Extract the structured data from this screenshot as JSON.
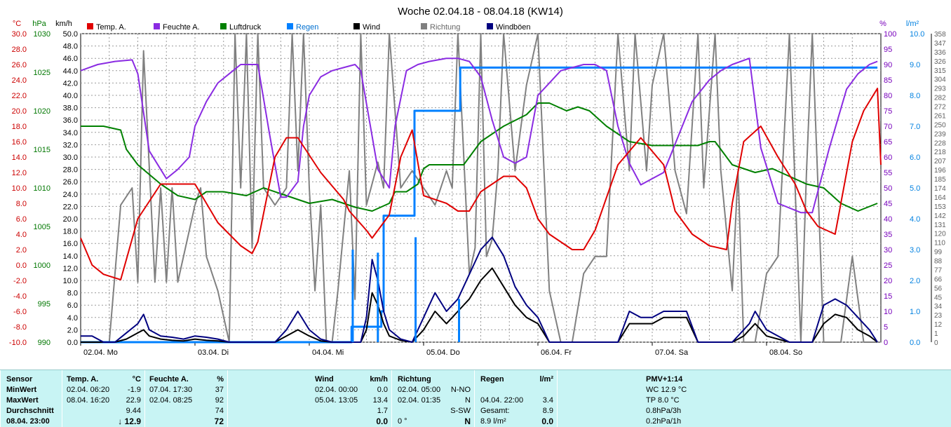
{
  "chart_data": {
    "type": "line",
    "title": "Woche 02.04.18 - 08.04.18 (KW14)",
    "x_labels": [
      "02.04. Mo",
      "03.04. Di",
      "04.04. Mi",
      "05.04. Do",
      "06.04. Fr",
      "07.04. Sa",
      "08.04. So"
    ],
    "axes": {
      "temp": {
        "unit": "°C",
        "ticks": [
          "30.0",
          "28.0",
          "26.0",
          "24.0",
          "22.0",
          "20.0",
          "18.0",
          "16.0",
          "14.0",
          "12.0",
          "10.0",
          "8.0",
          "6.0",
          "4.0",
          "2.0",
          "0.0",
          "-2.0",
          "-4.0",
          "-6.0",
          "-8.0",
          "-10.0"
        ],
        "range": [
          -10,
          30
        ],
        "color": "#cc0000"
      },
      "press": {
        "unit": "hPa",
        "ticks": [
          "1030",
          "1025",
          "1020",
          "1015",
          "1010",
          "1005",
          "1000",
          "995",
          "990"
        ],
        "range": [
          990,
          1030
        ],
        "color": "#007700"
      },
      "wind": {
        "unit": "km/h",
        "ticks": [
          "50.0",
          "48.0",
          "46.0",
          "44.0",
          "42.0",
          "40.0",
          "38.0",
          "36.0",
          "34.0",
          "32.0",
          "30.0",
          "28.0",
          "26.0",
          "24.0",
          "22.0",
          "20.0",
          "18.0",
          "16.0",
          "14.0",
          "12.0",
          "10.0",
          "8.0",
          "6.0",
          "4.0",
          "2.0",
          "0.0"
        ],
        "range": [
          0,
          50
        ],
        "color": "#000000"
      },
      "hum": {
        "unit": "%",
        "ticks": [
          "100",
          "95",
          "90",
          "85",
          "80",
          "75",
          "70",
          "65",
          "60",
          "55",
          "50",
          "45",
          "40",
          "35",
          "30",
          "25",
          "20",
          "15",
          "10",
          "5",
          "0"
        ],
        "range": [
          0,
          100
        ],
        "color": "#7700bb"
      },
      "rain": {
        "unit": "l/m²",
        "ticks": [
          "10.0",
          "9.0",
          "8.0",
          "7.0",
          "6.0",
          "5.0",
          "4.0",
          "3.0",
          "2.0",
          "1.0",
          "0.0"
        ],
        "range": [
          0,
          10
        ],
        "color": "#0080e0"
      },
      "dir": {
        "unit": "",
        "ticks": [
          "358",
          "347",
          "336",
          "326",
          "315",
          "304",
          "293",
          "282",
          "272",
          "261",
          "250",
          "239",
          "228",
          "218",
          "207",
          "196",
          "185",
          "174",
          "164",
          "153",
          "142",
          "131",
          "120",
          "110",
          "99",
          "88",
          "77",
          "66",
          "56",
          "45",
          "34",
          "23",
          "12",
          "1",
          "0"
        ],
        "range": [
          0,
          360
        ],
        "color": "#606060"
      }
    },
    "legend": [
      {
        "name": "Temp. A.",
        "color": "#e00000"
      },
      {
        "name": "Feuchte A.",
        "color": "#8a2be2"
      },
      {
        "name": "Luftdruck",
        "color": "#008000"
      },
      {
        "name": "Regen",
        "color": "#0080ff"
      },
      {
        "name": "Wind",
        "color": "#000000"
      },
      {
        "name": "Richtung",
        "color": "#808080"
      },
      {
        "name": "Windböen",
        "color": "#000080"
      }
    ],
    "series": [
      {
        "key": "temp",
        "axis": "temp",
        "color": "#e00000",
        "width": 2,
        "x": [
          0,
          0.1,
          0.2,
          0.35,
          0.5,
          0.7,
          1.0,
          1.2,
          1.4,
          1.5,
          1.55,
          1.7,
          1.8,
          1.9,
          2.1,
          2.3,
          2.35,
          2.5,
          2.55,
          2.7,
          2.8,
          2.9,
          3.0,
          3.2,
          3.3,
          3.4,
          3.5,
          3.6,
          3.7,
          3.8,
          3.9,
          4.0,
          4.1,
          4.3,
          4.4,
          4.5,
          4.7,
          4.9,
          5.1,
          5.2,
          5.35,
          5.5,
          5.65,
          5.7,
          5.8,
          5.95,
          6.1,
          6.25,
          6.35,
          6.45,
          6.6,
          6.75,
          6.85,
          6.97
        ],
        "y": [
          3.5,
          0,
          -1.2,
          -1.9,
          6,
          10.5,
          10.5,
          5.5,
          2.5,
          1.5,
          3,
          14,
          16.5,
          16.5,
          12,
          8.5,
          7,
          4.5,
          3.5,
          6.5,
          14,
          17.5,
          9,
          8,
          7,
          7,
          9.5,
          10.5,
          11.5,
          11.5,
          10,
          6,
          4,
          2,
          2,
          4.5,
          13,
          16.5,
          13,
          7,
          4,
          2.5,
          2,
          8,
          16,
          18,
          14,
          10.5,
          7,
          5,
          4,
          16,
          20,
          22.9
        ],
        "y_end": 13
      },
      {
        "key": "hum",
        "axis": "hum",
        "color": "#8a2be2",
        "width": 2,
        "x": [
          0,
          0.15,
          0.3,
          0.45,
          0.5,
          0.6,
          0.75,
          0.85,
          0.95,
          1.0,
          1.1,
          1.2,
          1.3,
          1.4,
          1.5,
          1.55,
          1.65,
          1.75,
          1.8,
          1.9,
          1.95,
          2.0,
          2.1,
          2.2,
          2.3,
          2.4,
          2.45,
          2.6,
          2.7,
          2.75,
          2.85,
          2.95,
          3.05,
          3.2,
          3.3,
          3.4,
          3.5,
          3.6,
          3.7,
          3.8,
          3.9,
          4.0,
          4.2,
          4.4,
          4.5,
          4.6,
          4.7,
          4.8,
          4.9,
          5.1,
          5.35,
          5.5,
          5.6,
          5.7,
          5.85,
          5.95,
          6.1,
          6.3,
          6.4,
          6.55,
          6.7,
          6.8,
          6.9,
          6.97
        ],
        "y": [
          88,
          90,
          91,
          91.5,
          87,
          62,
          53,
          56,
          60,
          70,
          78,
          84,
          87,
          90,
          90,
          90,
          68,
          47,
          47,
          52,
          70,
          80,
          86,
          88,
          89,
          90,
          88,
          56,
          50,
          70,
          88,
          90,
          91,
          92,
          92,
          91,
          86,
          72,
          60,
          58,
          60,
          80,
          88,
          90,
          90,
          88,
          70,
          58,
          51,
          55,
          78,
          85,
          88,
          90,
          92,
          63,
          45,
          42,
          42,
          63,
          82,
          87,
          90,
          91
        ]
      },
      {
        "key": "press",
        "axis": "press",
        "color": "#008000",
        "width": 2,
        "x": [
          0,
          0.2,
          0.35,
          0.4,
          0.5,
          0.7,
          0.85,
          1.0,
          1.1,
          1.25,
          1.45,
          1.6,
          1.8,
          2.0,
          2.2,
          2.4,
          2.55,
          2.7,
          2.75,
          2.85,
          2.95,
          3.0,
          3.05,
          3.2,
          3.35,
          3.5,
          3.7,
          3.9,
          4.0,
          4.1,
          4.25,
          4.35,
          4.45,
          4.6,
          4.8,
          5.0,
          5.2,
          5.4,
          5.5,
          5.55,
          5.7,
          5.9,
          6.05,
          6.2,
          6.35,
          6.5,
          6.65,
          6.8,
          6.97
        ],
        "y": [
          1018,
          1018,
          1017.5,
          1015,
          1013,
          1010.5,
          1009,
          1008.5,
          1009.5,
          1009.5,
          1009,
          1010,
          1009,
          1008,
          1008.5,
          1007.5,
          1007,
          1008,
          1009.5,
          1009.5,
          1010.5,
          1012.5,
          1013,
          1013,
          1013,
          1016,
          1018,
          1019.5,
          1021,
          1021,
          1020,
          1020.5,
          1020,
          1018,
          1016,
          1015.5,
          1015.5,
          1015.5,
          1016,
          1016,
          1013,
          1012,
          1012.5,
          1011.5,
          1010.5,
          1010,
          1008,
          1007,
          1008
        ]
      },
      {
        "key": "rain",
        "axis": "rain",
        "color": "#0080ff",
        "width": 3,
        "step": true,
        "x": [
          0,
          2.35,
          2.37,
          2.63,
          2.65,
          2.9,
          2.92,
          3.3,
          3.32,
          6.97
        ],
        "y": [
          0,
          0,
          0.5,
          1.0,
          4.1,
          4.1,
          7.5,
          7.5,
          8.9,
          8.9
        ]
      },
      {
        "key": "richtung",
        "axis": "dir",
        "color": "#808080",
        "width": 2,
        "x": [
          0,
          0.25,
          0.35,
          0.45,
          0.5,
          0.55,
          0.65,
          0.7,
          0.75,
          0.8,
          0.85,
          1.0,
          1.05,
          1.1,
          1.2,
          1.3,
          1.35,
          1.4,
          1.45,
          1.5,
          1.55,
          1.6,
          1.7,
          1.8,
          1.85,
          1.9,
          1.95,
          2.0,
          2.05,
          2.1,
          2.15,
          2.2,
          2.25,
          2.35,
          2.4,
          2.45,
          2.5,
          2.6,
          2.65,
          2.7,
          2.8,
          2.9,
          3.0,
          3.1,
          3.2,
          3.25,
          3.3,
          3.4,
          3.45,
          3.5,
          3.55,
          3.6,
          3.65,
          3.7,
          3.8,
          3.9,
          4.0,
          4.1,
          4.2,
          4.3,
          4.4,
          4.5,
          4.6,
          4.7,
          4.8,
          4.85,
          4.95,
          5.0,
          5.1,
          5.2,
          5.3,
          5.4,
          5.45,
          5.55,
          5.6,
          5.7,
          5.75,
          5.8,
          5.9,
          6.0,
          6.1,
          6.2,
          6.3,
          6.35,
          6.4,
          6.45,
          6.5,
          6.55,
          6.65,
          6.75,
          6.85,
          6.97
        ],
        "y": [
          0,
          0,
          160,
          180,
          70,
          340,
          70,
          180,
          70,
          180,
          70,
          160,
          180,
          100,
          60,
          0,
          360,
          180,
          360,
          110,
          360,
          180,
          160,
          180,
          360,
          200,
          360,
          180,
          60,
          160,
          0,
          0,
          60,
          200,
          50,
          360,
          160,
          210,
          180,
          360,
          180,
          200,
          180,
          160,
          200,
          180,
          360,
          80,
          110,
          360,
          100,
          120,
          200,
          360,
          200,
          300,
          360,
          60,
          0,
          0,
          80,
          100,
          100,
          360,
          200,
          360,
          200,
          300,
          360,
          200,
          150,
          360,
          180,
          360,
          200,
          60,
          200,
          0,
          0,
          80,
          100,
          360,
          0,
          200,
          360,
          180,
          0,
          0,
          0,
          100,
          0,
          0
        ]
      },
      {
        "key": "wind",
        "axis": "wind",
        "color": "#000000",
        "width": 2,
        "x": [
          0,
          0.1,
          0.2,
          0.3,
          0.4,
          0.5,
          0.55,
          0.6,
          0.7,
          0.8,
          0.9,
          1.0,
          1.1,
          1.2,
          1.3,
          1.4,
          1.5,
          1.6,
          1.7,
          1.8,
          1.9,
          2.0,
          2.1,
          2.2,
          2.3,
          2.4,
          2.45,
          2.5,
          2.55,
          2.6,
          2.65,
          2.7,
          2.8,
          2.9,
          3.0,
          3.1,
          3.2,
          3.25,
          3.3,
          3.4,
          3.5,
          3.6,
          3.7,
          3.8,
          3.9,
          4.0,
          4.1,
          4.2,
          4.3,
          4.4,
          4.5,
          4.6,
          4.7,
          4.8,
          4.9,
          5.0,
          5.1,
          5.2,
          5.3,
          5.4,
          5.5,
          5.6,
          5.7,
          5.8,
          5.85,
          5.9,
          6.0,
          6.1,
          6.2,
          6.3,
          6.35,
          6.4,
          6.5,
          6.6,
          6.7,
          6.8,
          6.9,
          6.97
        ],
        "y": [
          0,
          0,
          0,
          0,
          0.5,
          1.5,
          2,
          1,
          0.5,
          0.3,
          0.2,
          0.5,
          0.3,
          0.2,
          0,
          0,
          0,
          0,
          0,
          1,
          2,
          1,
          0.2,
          0,
          0,
          0,
          0,
          2,
          8,
          6,
          3,
          1,
          0.3,
          0,
          2,
          5,
          3,
          4,
          5,
          7,
          10,
          12,
          9,
          6,
          4,
          3,
          0,
          0,
          0,
          0,
          0,
          0,
          0,
          3,
          3,
          3,
          4,
          4,
          4,
          0,
          0,
          0,
          0,
          1,
          2,
          3,
          1,
          0.5,
          0,
          0,
          0,
          0,
          3,
          4.5,
          4,
          2,
          1,
          0
        ]
      },
      {
        "key": "boeen",
        "axis": "wind",
        "color": "#000080",
        "width": 2,
        "x": [
          0,
          0.1,
          0.2,
          0.3,
          0.4,
          0.5,
          0.55,
          0.6,
          0.7,
          0.8,
          0.9,
          1.0,
          1.1,
          1.2,
          1.3,
          1.4,
          1.5,
          1.6,
          1.7,
          1.8,
          1.9,
          2.0,
          2.1,
          2.2,
          2.3,
          2.4,
          2.45,
          2.5,
          2.55,
          2.6,
          2.65,
          2.7,
          2.8,
          2.9,
          3.0,
          3.1,
          3.2,
          3.25,
          3.3,
          3.4,
          3.5,
          3.6,
          3.7,
          3.8,
          3.9,
          4.0,
          4.1,
          4.2,
          4.3,
          4.4,
          4.5,
          4.6,
          4.7,
          4.8,
          4.9,
          5.0,
          5.1,
          5.2,
          5.3,
          5.4,
          5.5,
          5.6,
          5.7,
          5.8,
          5.85,
          5.9,
          6.0,
          6.1,
          6.2,
          6.3,
          6.35,
          6.4,
          6.5,
          6.6,
          6.7,
          6.8,
          6.9,
          6.97
        ],
        "y": [
          1,
          1,
          0,
          0,
          1.5,
          3,
          4.5,
          2,
          1,
          0.8,
          0.5,
          1,
          0.8,
          0.5,
          0,
          0,
          0,
          0,
          0,
          2,
          5,
          2,
          0.5,
          0,
          0,
          0,
          0,
          4,
          13.4,
          10,
          5,
          2,
          0.5,
          0,
          4,
          8,
          5,
          6,
          7,
          11,
          15,
          17,
          14,
          9,
          6,
          4,
          0,
          0,
          0,
          0,
          0,
          0,
          0,
          5,
          4,
          4,
          5,
          5,
          5,
          0,
          0,
          0,
          0,
          2,
          3,
          5,
          2,
          1,
          0,
          0,
          0,
          0,
          6,
          7,
          6,
          4,
          2,
          0
        ]
      }
    ]
  },
  "table": {
    "sensor": {
      "h": "Sensor",
      "rows": [
        "MinWert",
        "MaxWert",
        "Durchschnitt",
        "08.04. 23:00"
      ]
    },
    "temp": {
      "h": "Temp. A.",
      "u": "°C",
      "rows": [
        [
          "02.04.  06:20",
          "-1.9"
        ],
        [
          "08.04.  16:20",
          "22.9"
        ],
        [
          "",
          "9.44"
        ],
        [
          "",
          "↓ 12.9"
        ]
      ]
    },
    "hum": {
      "h": "Feuchte A.",
      "u": "%",
      "rows": [
        [
          "07.04.  17:30",
          "37"
        ],
        [
          "02.04.  08:25",
          "92"
        ],
        [
          "",
          "74"
        ],
        [
          "",
          "72"
        ]
      ]
    },
    "wind": {
      "h": "Wind",
      "u": "km/h",
      "rows": [
        [
          "02.04.  00:00",
          "0.0"
        ],
        [
          "05.04.  13:05",
          "13.4"
        ],
        [
          "",
          "1.7"
        ],
        [
          "",
          "0.0"
        ]
      ]
    },
    "dir": {
      "h": "Richtung",
      "rows": [
        [
          "02.04.  05:00",
          "N-NO"
        ],
        [
          "02.04.  01:35",
          "N"
        ],
        [
          "",
          "S-SW"
        ],
        [
          "0 °",
          "N"
        ]
      ]
    },
    "rain": {
      "h": "Regen",
      "u": "l/m²",
      "rows": [
        [
          "",
          ""
        ],
        [
          "04.04.  22:00",
          "3.4"
        ],
        [
          "Gesamt:",
          "8.9"
        ],
        [
          "8.9 l/m²",
          "0.0"
        ]
      ]
    },
    "pmv": {
      "h": "PMV+1:14",
      "rows": [
        "WC 12.9 °C",
        "TP 8.0 °C",
        "0.8hPa/3h",
        "0.2hPa/1h"
      ]
    }
  }
}
